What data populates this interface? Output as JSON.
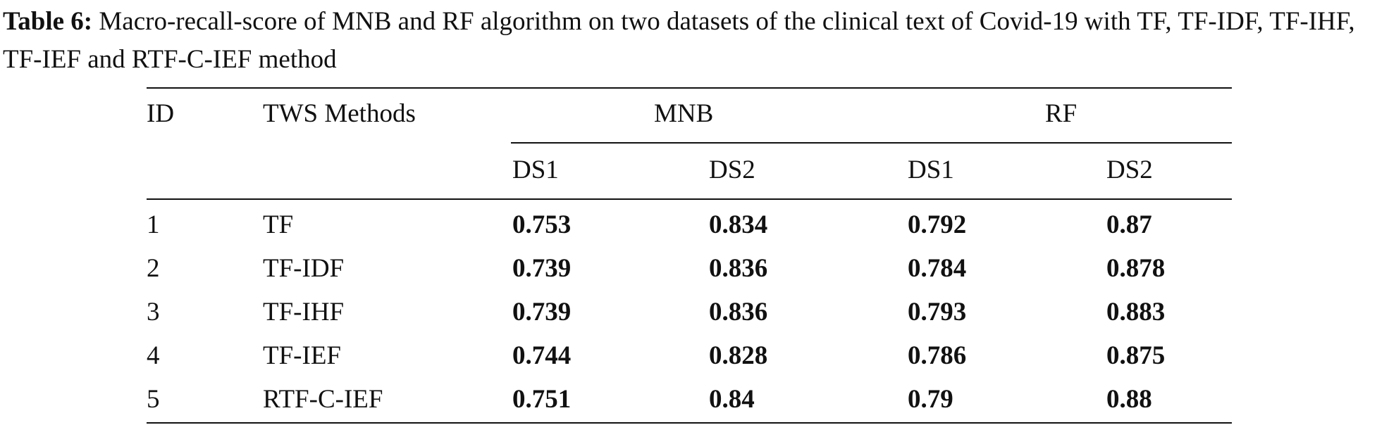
{
  "caption": {
    "label": "Table 6:",
    "text": " Macro-recall-score of MNB and RF algorithm on two datasets of the clinical text of Covid-19 with TF, TF-IDF, TF-IHF, TF-IEF and RTF-C-IEF method"
  },
  "table": {
    "headers": {
      "id": "ID",
      "methods": "TWS Methods",
      "group1": "MNB",
      "group2": "RF",
      "sub": [
        "DS1",
        "DS2",
        "DS1",
        "DS2"
      ]
    },
    "rows": [
      {
        "id": "1",
        "method": "TF",
        "values": [
          "0.753",
          "0.834",
          "0.792",
          "0.87"
        ]
      },
      {
        "id": "2",
        "method": "TF-IDF",
        "values": [
          "0.739",
          "0.836",
          "0.784",
          "0.878"
        ]
      },
      {
        "id": "3",
        "method": "TF-IHF",
        "values": [
          "0.739",
          "0.836",
          "0.793",
          "0.883"
        ]
      },
      {
        "id": "4",
        "method": "TF-IEF",
        "values": [
          "0.744",
          "0.828",
          "0.786",
          "0.875"
        ]
      },
      {
        "id": "5",
        "method": "RTF-C-IEF",
        "values": [
          "0.751",
          "0.84",
          "0.79",
          "0.88"
        ]
      }
    ]
  }
}
